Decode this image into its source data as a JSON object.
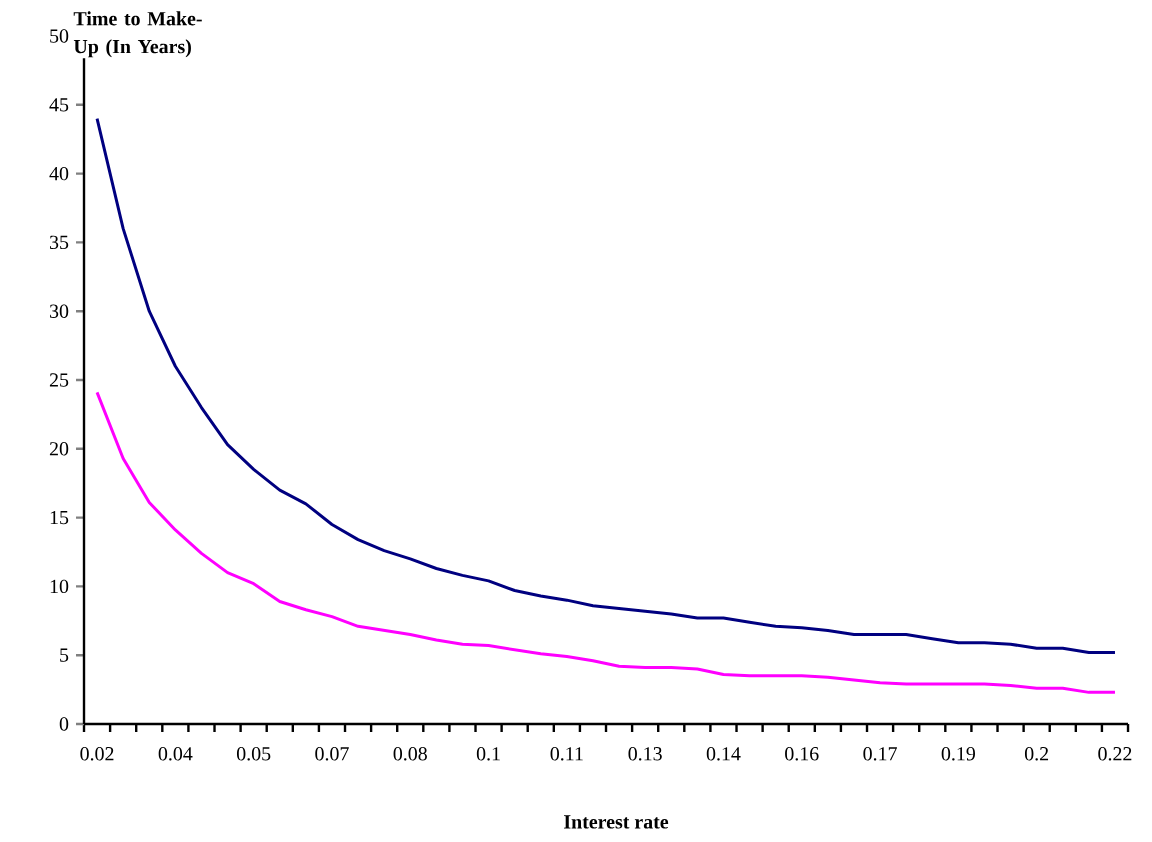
{
  "chart_data": {
    "type": "line",
    "ylabel": "Time to Make-Up (In Years)",
    "xlabel": "Interest rate",
    "categories": [
      "0.02",
      null,
      null,
      "0.04",
      null,
      null,
      "0.05",
      null,
      null,
      "0.07",
      null,
      null,
      "0.08",
      null,
      null,
      "0.1",
      null,
      null,
      "0.11",
      null,
      null,
      "0.13",
      null,
      null,
      "0.14",
      null,
      null,
      "0.16",
      null,
      null,
      "0.17",
      null,
      null,
      "0.19",
      null,
      null,
      "0.2",
      null,
      null,
      "0.22"
    ],
    "series": [
      {
        "color": "#000080",
        "values": [
          44,
          36,
          30,
          26,
          23,
          20.3,
          18.5,
          17,
          16,
          14.5,
          13.4,
          12.6,
          12,
          11.3,
          10.8,
          10.4,
          9.7,
          9.3,
          9,
          8.6,
          8.4,
          8.2,
          8,
          7.7,
          7.7,
          7.4,
          7.1,
          7,
          6.8,
          6.5,
          6.5,
          6.5,
          6.2,
          5.9,
          5.9,
          5.8,
          5.5,
          5.5,
          5.2,
          5.2
        ]
      },
      {
        "color": "#ff00ff",
        "values": [
          24.1,
          19.3,
          16.1,
          14.1,
          12.4,
          11,
          10.2,
          8.9,
          8.3,
          7.8,
          7.1,
          6.8,
          6.5,
          6.1,
          5.8,
          5.7,
          5.4,
          5.1,
          4.9,
          4.6,
          4.2,
          4.1,
          4.1,
          4,
          3.6,
          3.5,
          3.5,
          3.5,
          3.4,
          3.2,
          3,
          2.9,
          2.9,
          2.9,
          2.9,
          2.8,
          2.6,
          2.6,
          2.3,
          2.3
        ]
      }
    ],
    "ylim": [
      0,
      50
    ],
    "yticks": [
      0,
      5,
      10,
      15,
      20,
      25,
      30,
      35,
      40,
      45,
      50
    ],
    "grid": false
  }
}
